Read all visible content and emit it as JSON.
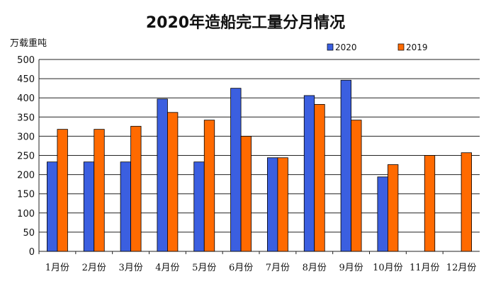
{
  "chart_data": {
    "type": "bar",
    "title": "2020年造船完工量分月情况",
    "ylabel": "万载重吨",
    "xlabel": "",
    "ylim": [
      0,
      500
    ],
    "yticks": [
      0,
      50,
      100,
      150,
      200,
      250,
      300,
      350,
      400,
      450,
      500
    ],
    "grid": true,
    "legend_position": "top-right",
    "categories": [
      "1月份",
      "2月份",
      "3月份",
      "4月份",
      "5月份",
      "6月份",
      "7月份",
      "8月份",
      "9月份",
      "10月份",
      "11月份",
      "12月份"
    ],
    "series": [
      {
        "name": "2020",
        "color": "#3b5fe0",
        "values": [
          233,
          233,
          233,
          397,
          233,
          425,
          244,
          406,
          446,
          194,
          null,
          null
        ]
      },
      {
        "name": "2019",
        "color": "#ff6a00",
        "values": [
          318,
          318,
          326,
          362,
          342,
          300,
          244,
          383,
          342,
          226,
          250,
          257
        ]
      }
    ]
  }
}
